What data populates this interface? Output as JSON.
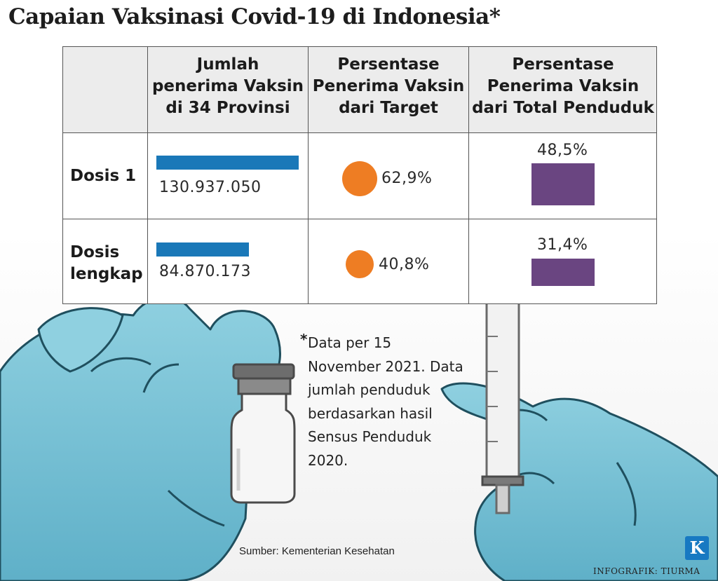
{
  "title": "Capaian Vaksinasi Covid-19 di Indonesia*",
  "table": {
    "columns": [
      "Jumlah\npenerima Vaksin\ndi 34 Provinsi",
      "Persentase\nPenerima Vaksin\ndari Target",
      "Persentase\nPenerima Vaksin\ndari Total Penduduk"
    ],
    "rows": [
      {
        "label": "Dosis 1",
        "recipients": "130.937.050",
        "target_pct": "62,9%",
        "population_pct": "48,5%"
      },
      {
        "label": "Dosis\nlengkap",
        "recipients": "84.870.173",
        "target_pct": "40,8%",
        "population_pct": "31,4%"
      }
    ]
  },
  "chart_data": {
    "type": "table",
    "title": "Capaian Vaksinasi Covid-19 di Indonesia*",
    "categories": [
      "Dosis 1",
      "Dosis lengkap"
    ],
    "series": [
      {
        "name": "Jumlah penerima Vaksin di 34 Provinsi",
        "values": [
          130937050,
          84870173
        ]
      },
      {
        "name": "Persentase Penerima Vaksin dari Target",
        "values": [
          62.9,
          40.8
        ]
      },
      {
        "name": "Persentase Penerima Vaksin dari Total Penduduk",
        "values": [
          48.5,
          31.4
        ]
      }
    ]
  },
  "note": {
    "star": "*",
    "text": "Data per 15 November 2021. Data jumlah penduduk berdasarkan hasil Sensus Penduduk 2020."
  },
  "source": "Sumber: Kementerian Kesehatan",
  "logo_letter": "K",
  "credit": "INFOGRAFIK: TIURMA",
  "colors": {
    "bar_recipients": "#1a78b8",
    "circle_target": "#ee7d23",
    "bar_population": "#6a4581",
    "glove": "#7cc3d6",
    "logo": "#1779c2"
  }
}
